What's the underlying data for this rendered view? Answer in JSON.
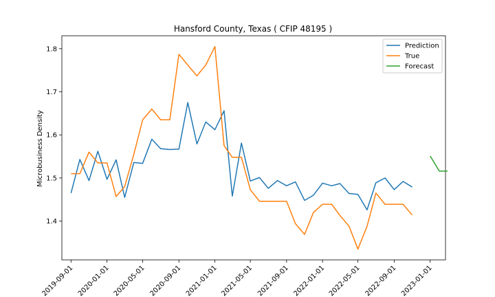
{
  "chart_data": {
    "type": "line",
    "title": "Hansford County, Texas ( CFIP 48195 )",
    "xlabel": "",
    "ylabel": "Microbusiness Density",
    "ylim": [
      1.31,
      1.83
    ],
    "xlim": [
      "2019-08-01",
      "2023-02-22"
    ],
    "yticks": [
      1.4,
      1.5,
      1.6,
      1.7,
      1.8
    ],
    "xticks": [
      "2019-09-01",
      "2020-01-01",
      "2020-05-01",
      "2020-09-01",
      "2021-01-01",
      "2021-05-01",
      "2021-09-01",
      "2022-01-01",
      "2022-05-01",
      "2022-09-01",
      "2023-01-01"
    ],
    "legend_position": "top-right",
    "series": [
      {
        "name": "Prediction",
        "color": "#1f77b4",
        "x": [
          "2019-09-01",
          "2019-10-01",
          "2019-11-01",
          "2019-12-01",
          "2020-01-01",
          "2020-02-01",
          "2020-03-01",
          "2020-04-01",
          "2020-05-01",
          "2020-06-01",
          "2020-07-01",
          "2020-08-01",
          "2020-09-01",
          "2020-10-01",
          "2020-11-01",
          "2020-12-01",
          "2021-01-01",
          "2021-02-01",
          "2021-03-01",
          "2021-04-01",
          "2021-05-01",
          "2021-06-01",
          "2021-07-01",
          "2021-08-01",
          "2021-09-01",
          "2021-10-01",
          "2021-11-01",
          "2021-12-01",
          "2022-01-01",
          "2022-02-01",
          "2022-03-01",
          "2022-04-01",
          "2022-05-01",
          "2022-06-01",
          "2022-07-01",
          "2022-08-01",
          "2022-09-01",
          "2022-10-01",
          "2022-11-01"
        ],
        "y": [
          1.465,
          1.543,
          1.494,
          1.562,
          1.497,
          1.542,
          1.455,
          1.536,
          1.534,
          1.59,
          1.568,
          1.566,
          1.567,
          1.675,
          1.579,
          1.63,
          1.612,
          1.656,
          1.458,
          1.581,
          1.493,
          1.501,
          1.476,
          1.494,
          1.482,
          1.491,
          1.448,
          1.46,
          1.488,
          1.482,
          1.487,
          1.464,
          1.462,
          1.426,
          1.489,
          1.5,
          1.473,
          1.492,
          1.479
        ]
      },
      {
        "name": "True",
        "color": "#ff7f0e",
        "x": [
          "2019-09-01",
          "2019-10-01",
          "2019-11-01",
          "2019-12-01",
          "2020-01-01",
          "2020-02-01",
          "2020-03-01",
          "2020-04-01",
          "2020-05-01",
          "2020-06-01",
          "2020-07-01",
          "2020-08-01",
          "2020-09-01",
          "2020-10-01",
          "2020-11-01",
          "2020-12-01",
          "2021-01-01",
          "2021-02-01",
          "2021-03-01",
          "2021-04-01",
          "2021-05-01",
          "2021-06-01",
          "2021-07-01",
          "2021-08-01",
          "2021-09-01",
          "2021-10-01",
          "2021-11-01",
          "2021-12-01",
          "2022-01-01",
          "2022-02-01",
          "2022-03-01",
          "2022-04-01",
          "2022-05-01",
          "2022-06-01",
          "2022-07-01",
          "2022-08-01",
          "2022-09-01",
          "2022-10-01",
          "2022-11-01"
        ],
        "y": [
          1.51,
          1.51,
          1.56,
          1.535,
          1.535,
          1.457,
          1.48,
          1.555,
          1.635,
          1.66,
          1.635,
          1.635,
          1.787,
          1.762,
          1.737,
          1.762,
          1.805,
          1.575,
          1.548,
          1.548,
          1.473,
          1.446,
          1.446,
          1.446,
          1.446,
          1.394,
          1.369,
          1.42,
          1.439,
          1.439,
          1.413,
          1.388,
          1.335,
          1.388,
          1.465,
          1.439,
          1.439,
          1.439,
          1.414
        ]
      },
      {
        "name": "Forecast",
        "color": "#2ca02c",
        "x": [
          "2023-01-01",
          "2023-02-01",
          "2023-03-01"
        ],
        "y": [
          1.551,
          1.516,
          1.516
        ]
      }
    ]
  }
}
